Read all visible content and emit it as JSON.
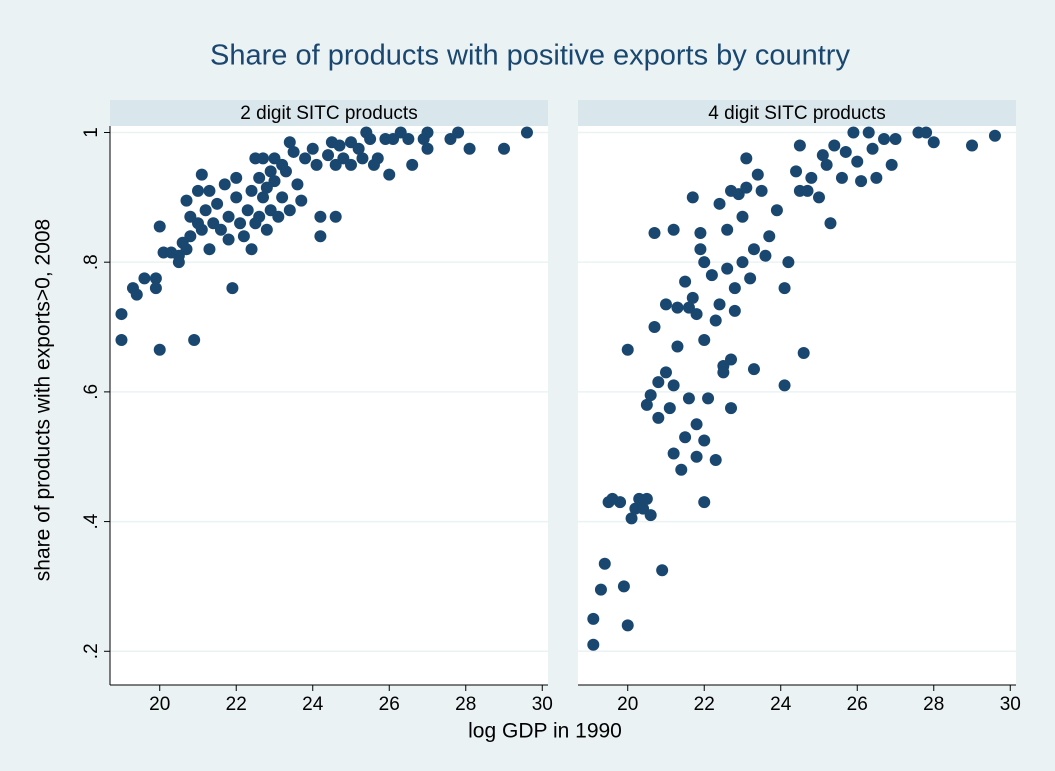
{
  "chart_data": {
    "type": "scatter",
    "title": "Share of products with positive exports by country",
    "xlabel": "log GDP in 1990",
    "ylabel": "share of products with exports>0, 2008",
    "xlim": [
      18.7,
      30.15
    ],
    "xticks": [
      20,
      22,
      24,
      26,
      28,
      30
    ],
    "ylim": [
      0.148,
      1.01
    ],
    "yticks": [
      {
        "value": 0.2,
        "label": ".2"
      },
      {
        "value": 0.4,
        "label": ".4"
      },
      {
        "value": 0.6,
        "label": ".6"
      },
      {
        "value": 0.8,
        "label": ".8"
      },
      1
    ],
    "grid": true,
    "color": "#1a476f",
    "panels": [
      {
        "title": "2 digit SITC products",
        "x": [
          19.0,
          19.0,
          19.3,
          19.4,
          19.6,
          19.9,
          19.9,
          20.0,
          20.0,
          20.1,
          20.3,
          20.5,
          20.5,
          20.6,
          20.7,
          20.8,
          20.8,
          20.9,
          20.7,
          21.0,
          21.0,
          21.1,
          21.1,
          21.2,
          21.3,
          21.3,
          21.4,
          21.5,
          21.6,
          21.7,
          21.8,
          21.8,
          21.9,
          22.0,
          22.0,
          22.1,
          22.2,
          22.3,
          22.4,
          22.4,
          22.5,
          22.5,
          22.6,
          22.6,
          22.7,
          22.7,
          22.8,
          22.8,
          22.9,
          22.9,
          23.0,
          23.0,
          23.1,
          23.2,
          23.2,
          23.3,
          23.4,
          23.4,
          23.5,
          23.6,
          23.7,
          23.8,
          24.0,
          24.1,
          24.2,
          24.2,
          24.4,
          24.5,
          24.6,
          24.6,
          24.7,
          24.8,
          25.0,
          25.0,
          25.2,
          25.3,
          25.4,
          25.5,
          25.6,
          25.7,
          25.9,
          26.0,
          26.1,
          26.3,
          26.5,
          26.6,
          26.9,
          27.0,
          27.0,
          27.6,
          27.8,
          28.1,
          29.0,
          29.6
        ],
        "y": [
          0.72,
          0.68,
          0.76,
          0.75,
          0.775,
          0.775,
          0.76,
          0.665,
          0.855,
          0.815,
          0.815,
          0.81,
          0.8,
          0.83,
          0.82,
          0.87,
          0.84,
          0.68,
          0.895,
          0.86,
          0.91,
          0.935,
          0.85,
          0.88,
          0.82,
          0.91,
          0.86,
          0.89,
          0.85,
          0.92,
          0.87,
          0.835,
          0.76,
          0.93,
          0.9,
          0.86,
          0.84,
          0.88,
          0.82,
          0.91,
          0.96,
          0.86,
          0.93,
          0.87,
          0.96,
          0.9,
          0.85,
          0.915,
          0.94,
          0.88,
          0.925,
          0.96,
          0.87,
          0.95,
          0.9,
          0.94,
          0.985,
          0.88,
          0.97,
          0.92,
          0.895,
          0.96,
          0.975,
          0.95,
          0.87,
          0.84,
          0.965,
          0.985,
          0.87,
          0.95,
          0.98,
          0.96,
          0.95,
          0.985,
          0.975,
          0.96,
          1.0,
          0.99,
          0.95,
          0.96,
          0.99,
          0.935,
          0.99,
          1.0,
          0.99,
          0.95,
          0.99,
          1.0,
          0.975,
          0.99,
          1.0,
          0.975,
          0.975,
          1.0
        ]
      },
      {
        "title": "4 digit SITC products",
        "x": [
          19.1,
          19.1,
          19.3,
          19.4,
          19.5,
          19.6,
          19.8,
          19.9,
          20.0,
          20.0,
          20.1,
          20.2,
          20.3,
          20.4,
          20.5,
          20.5,
          20.6,
          20.6,
          20.7,
          20.7,
          20.8,
          20.8,
          20.9,
          21.0,
          21.0,
          21.1,
          21.2,
          21.2,
          21.2,
          21.3,
          21.3,
          21.4,
          21.5,
          21.5,
          21.6,
          21.6,
          21.7,
          21.7,
          21.8,
          21.8,
          21.8,
          21.9,
          21.9,
          22.0,
          22.0,
          22.0,
          22.0,
          22.1,
          22.2,
          22.3,
          22.3,
          22.4,
          22.4,
          22.5,
          22.5,
          22.6,
          22.6,
          22.7,
          22.7,
          22.7,
          22.8,
          22.8,
          22.9,
          23.0,
          23.0,
          23.1,
          23.1,
          23.2,
          23.3,
          23.3,
          23.4,
          23.5,
          23.6,
          23.7,
          23.9,
          24.1,
          24.1,
          24.2,
          24.4,
          24.5,
          24.5,
          24.6,
          24.7,
          24.8,
          25.0,
          25.1,
          25.2,
          25.3,
          25.4,
          25.6,
          25.7,
          25.9,
          26.0,
          26.1,
          26.3,
          26.4,
          26.5,
          26.7,
          26.9,
          27.0,
          27.6,
          27.8,
          28.0,
          29.0,
          29.6
        ],
        "y": [
          0.25,
          0.21,
          0.295,
          0.335,
          0.43,
          0.435,
          0.43,
          0.3,
          0.24,
          0.665,
          0.405,
          0.42,
          0.435,
          0.42,
          0.435,
          0.58,
          0.41,
          0.595,
          0.7,
          0.845,
          0.56,
          0.615,
          0.325,
          0.63,
          0.735,
          0.575,
          0.505,
          0.61,
          0.85,
          0.67,
          0.73,
          0.48,
          0.53,
          0.77,
          0.59,
          0.73,
          0.745,
          0.9,
          0.55,
          0.5,
          0.72,
          0.82,
          0.845,
          0.43,
          0.525,
          0.68,
          0.8,
          0.59,
          0.78,
          0.71,
          0.495,
          0.89,
          0.735,
          0.64,
          0.63,
          0.85,
          0.79,
          0.65,
          0.575,
          0.91,
          0.76,
          0.725,
          0.905,
          0.8,
          0.87,
          0.915,
          0.96,
          0.775,
          0.635,
          0.82,
          0.935,
          0.91,
          0.81,
          0.84,
          0.88,
          0.76,
          0.61,
          0.8,
          0.94,
          0.98,
          0.91,
          0.66,
          0.91,
          0.93,
          0.9,
          0.965,
          0.95,
          0.86,
          0.98,
          0.93,
          0.97,
          1.0,
          0.955,
          0.925,
          1.0,
          0.975,
          0.93,
          0.99,
          0.95,
          0.99,
          1.0,
          1.0,
          0.985,
          0.98,
          0.995
        ]
      }
    ]
  }
}
